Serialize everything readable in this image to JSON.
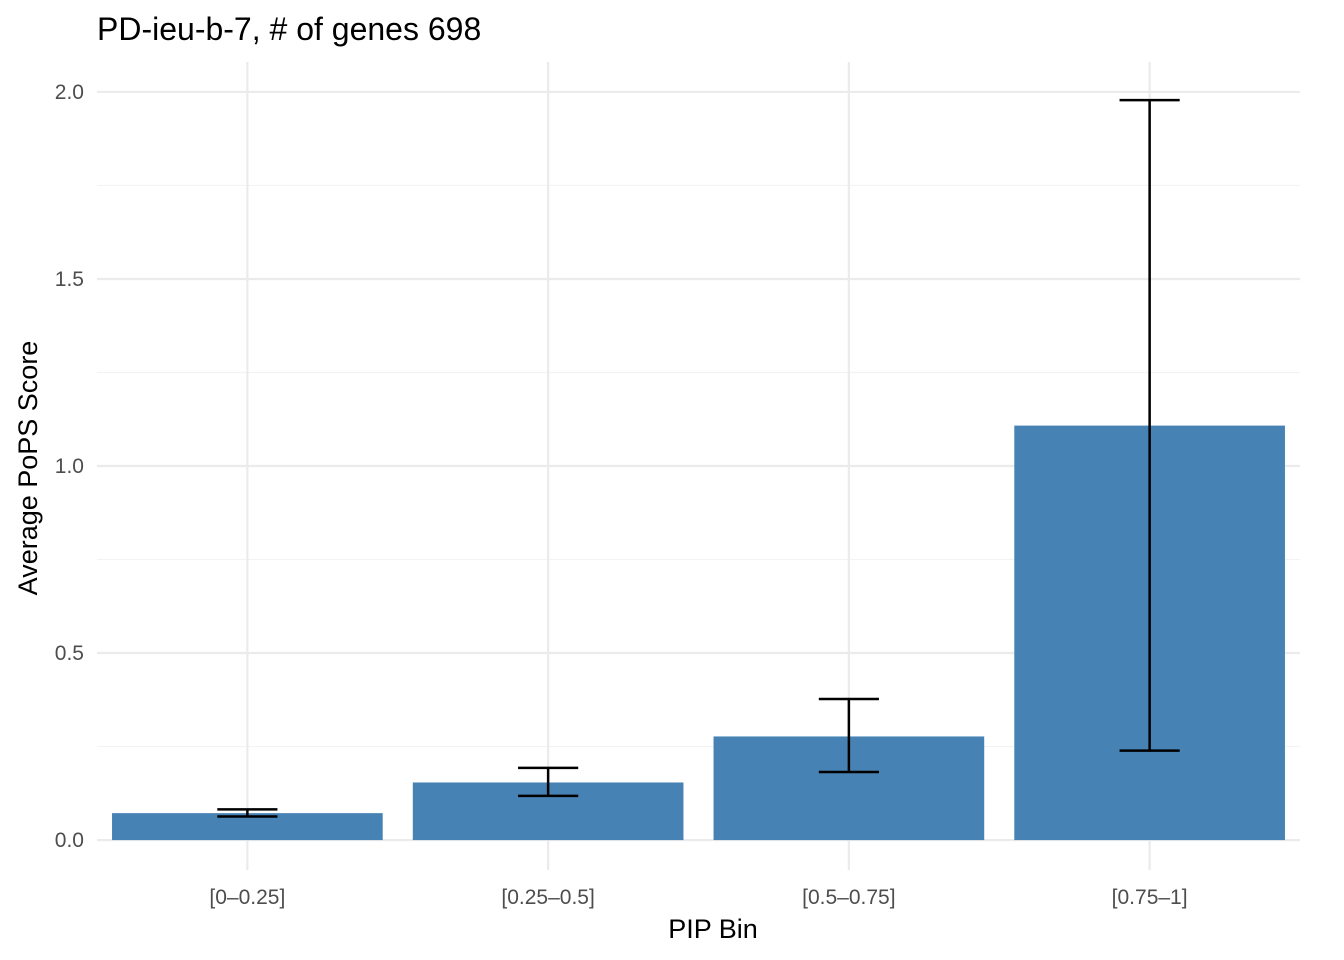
{
  "chart_data": {
    "type": "bar",
    "title": "PD-ieu-b-7, # of genes 698",
    "xlabel": "PIP Bin",
    "ylabel": "Average PoPS Score",
    "categories": [
      "[0–0.25]",
      "[0.25–0.5]",
      "[0.5–0.75]",
      "[0.75–1]"
    ],
    "values": [
      0.072,
      0.154,
      0.277,
      1.108
    ],
    "error_low": [
      0.063,
      0.118,
      0.182,
      0.239
    ],
    "error_high": [
      0.082,
      0.193,
      0.377,
      1.978
    ],
    "ylim": [
      -0.08,
      2.08
    ],
    "yticks": [
      0.0,
      0.5,
      1.0,
      1.5,
      2.0
    ],
    "ytick_labels": [
      "0.0",
      "0.5",
      "1.0",
      "1.5",
      "2.0"
    ],
    "bar_color": "#4682b4",
    "grid": true
  }
}
